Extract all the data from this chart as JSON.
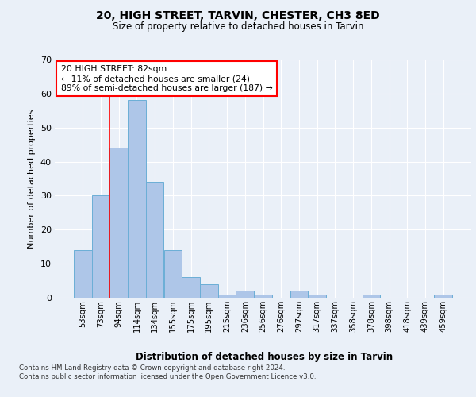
{
  "title1": "20, HIGH STREET, TARVIN, CHESTER, CH3 8ED",
  "title2": "Size of property relative to detached houses in Tarvin",
  "xlabel": "Distribution of detached houses by size in Tarvin",
  "ylabel": "Number of detached properties",
  "categories": [
    "53sqm",
    "73sqm",
    "94sqm",
    "114sqm",
    "134sqm",
    "155sqm",
    "175sqm",
    "195sqm",
    "215sqm",
    "236sqm",
    "256sqm",
    "276sqm",
    "297sqm",
    "317sqm",
    "337sqm",
    "358sqm",
    "378sqm",
    "398sqm",
    "418sqm",
    "439sqm",
    "459sqm"
  ],
  "values": [
    14,
    30,
    44,
    58,
    34,
    14,
    6,
    4,
    1,
    2,
    1,
    0,
    2,
    1,
    0,
    0,
    1,
    0,
    0,
    0,
    1
  ],
  "bar_color": "#aec6e8",
  "bar_edge_color": "#6baed6",
  "red_line_x": 1.5,
  "annotation_text": "20 HIGH STREET: 82sqm\n← 11% of detached houses are smaller (24)\n89% of semi-detached houses are larger (187) →",
  "ylim": [
    0,
    70
  ],
  "yticks": [
    0,
    10,
    20,
    30,
    40,
    50,
    60,
    70
  ],
  "footer1": "Contains HM Land Registry data © Crown copyright and database right 2024.",
  "footer2": "Contains public sector information licensed under the Open Government Licence v3.0.",
  "bg_color": "#eaf0f8",
  "plot_bg_color": "#eaf0f8"
}
